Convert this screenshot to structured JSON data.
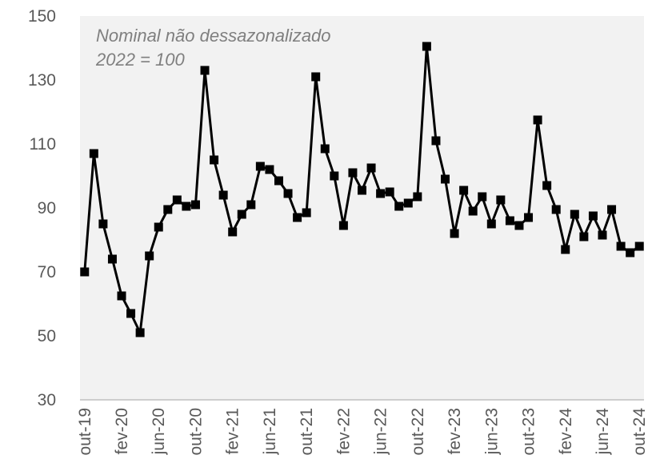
{
  "chart_data": {
    "type": "line",
    "annotations": [
      "Nominal não dessazonalizado",
      "2022 = 100"
    ],
    "categories": [
      "out-19",
      null,
      null,
      null,
      "fev-20",
      null,
      null,
      null,
      "jun-20",
      null,
      null,
      null,
      "out-20",
      null,
      null,
      null,
      "fev-21",
      null,
      null,
      null,
      "jun-21",
      null,
      null,
      null,
      "out-21",
      null,
      null,
      null,
      "fev-22",
      null,
      null,
      null,
      "jun-22",
      null,
      null,
      null,
      "out-22",
      null,
      null,
      null,
      "fev-23",
      null,
      null,
      null,
      "jun-23",
      null,
      null,
      null,
      "out-23",
      null,
      null,
      null,
      "fev-24",
      null,
      null,
      null,
      "jun-24",
      null,
      null,
      null,
      "out-24"
    ],
    "series": [
      {
        "color": "#000000",
        "values": [
          70,
          107,
          85,
          74,
          62.5,
          57,
          51,
          75,
          84,
          89.5,
          92.5,
          90.5,
          91,
          133,
          105,
          94,
          82.5,
          88,
          91,
          103,
          102,
          98.5,
          94.5,
          87,
          88.5,
          131,
          108.5,
          100,
          84.5,
          101,
          95.5,
          102.5,
          94.5,
          95,
          90.5,
          91.5,
          93.5,
          140.5,
          111,
          99,
          82,
          95.5,
          89,
          93.5,
          85,
          92.5,
          86,
          84.5,
          87,
          117.5,
          97,
          89.5,
          77,
          88,
          81,
          87.5,
          81.5,
          89.5,
          78,
          76,
          78
        ]
      }
    ],
    "ylim": [
      30,
      150
    ],
    "yticks": [
      30,
      50,
      70,
      90,
      110,
      130,
      150
    ],
    "grid": false
  }
}
